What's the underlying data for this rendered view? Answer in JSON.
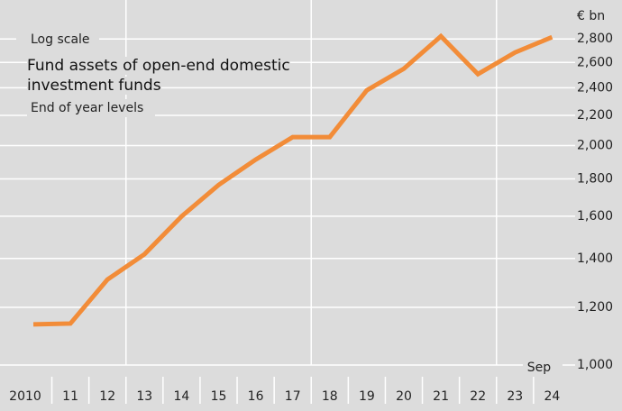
{
  "chart_data": {
    "type": "line",
    "title": "Fund assets of open-end domestic investment funds",
    "subtitle": "End of year levels",
    "scale_note": "Log scale",
    "y_unit": "€ bn",
    "annotation": "Sep",
    "categories": [
      "2010",
      "11",
      "12",
      "13",
      "14",
      "15",
      "16",
      "17",
      "18",
      "19",
      "20",
      "21",
      "22",
      "23",
      "24"
    ],
    "series": [
      {
        "name": "Fund assets",
        "color": "#f28c38",
        "values": [
          1137,
          1140,
          1310,
          1419,
          1599,
          1766,
          1913,
          2054,
          2054,
          2381,
          2549,
          2824,
          2506,
          2683,
          2816
        ]
      }
    ],
    "ylim": [
      1000,
      3000
    ],
    "log_scale": true,
    "grid": true,
    "yticks": [
      {
        "value": 1000,
        "label": "1,000"
      },
      {
        "value": 1200,
        "label": "1,200"
      },
      {
        "value": 1400,
        "label": "1,400"
      },
      {
        "value": 1600,
        "label": "1,600"
      },
      {
        "value": 1800,
        "label": "1,800"
      },
      {
        "value": 2000,
        "label": "2,000"
      },
      {
        "value": 2200,
        "label": "2,200"
      },
      {
        "value": 2400,
        "label": "2,400"
      },
      {
        "value": 2600,
        "label": "2,600"
      },
      {
        "value": 2800,
        "label": "2,800"
      }
    ]
  }
}
